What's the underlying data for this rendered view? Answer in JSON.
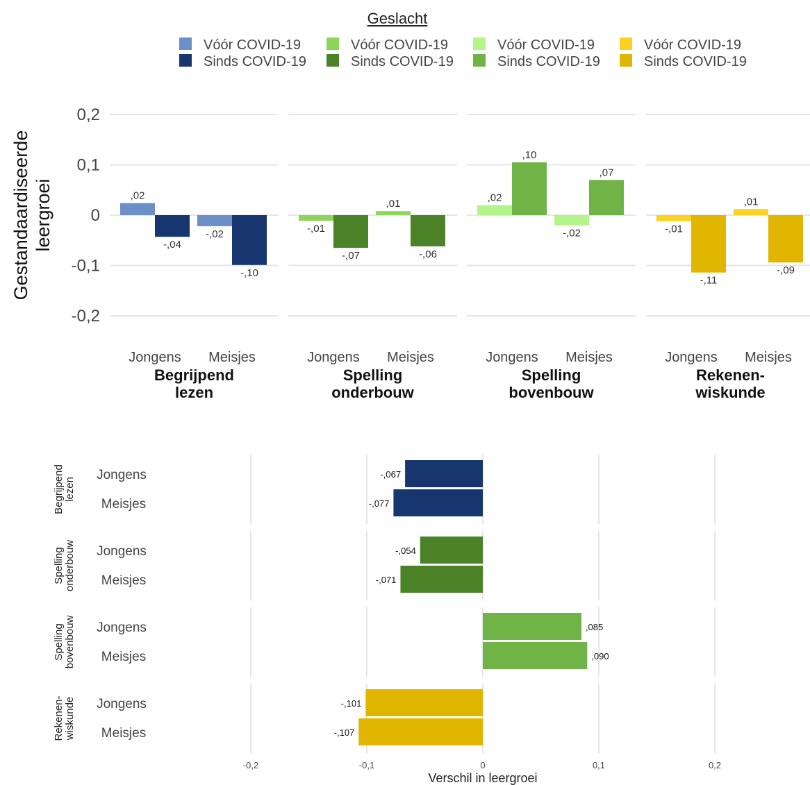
{
  "legend": {
    "title": "Geslacht",
    "groups": [
      {
        "before_label": "Vóór COVID-19",
        "since_label": "Sinds COVID-19",
        "before_color": "#6d8fc8",
        "since_color": "#17366f"
      },
      {
        "before_label": "Vóór COVID-19",
        "since_label": "Sinds COVID-19",
        "before_color": "#8dd45a",
        "since_color": "#4b8227"
      },
      {
        "before_label": "Vóór COVID-19",
        "since_label": "Sinds COVID-19",
        "before_color": "#b3f58a",
        "since_color": "#70b347"
      },
      {
        "before_label": "Vóór COVID-19",
        "since_label": "Sinds COVID-19",
        "before_color": "#fcd11f",
        "since_color": "#e0b600"
      }
    ]
  },
  "chart_data": [
    {
      "type": "bar",
      "ylabel": "Gestandaardiseerde leergroei",
      "ylim": [
        -0.2,
        0.2
      ],
      "yticks": [
        {
          "value": 0.2,
          "label": "0,2"
        },
        {
          "value": 0.1,
          "label": "0,1"
        },
        {
          "value": 0,
          "label": "0"
        },
        {
          "value": -0.1,
          "label": "-0,1"
        },
        {
          "value": -0.2,
          "label": "-0,2"
        }
      ],
      "grid": true,
      "categories": [
        "Jongens",
        "Meisjes"
      ],
      "facets": [
        {
          "name_lines": [
            "Begrijpend",
            "lezen"
          ],
          "before_color": "#6d8fc8",
          "since_color": "#17366f",
          "bars": [
            {
              "before": 0.024,
              "before_label": ",02",
              "since": -0.043,
              "since_label": "-,04"
            },
            {
              "before": -0.022,
              "before_label": "-,02",
              "since": -0.099,
              "since_label": "-,10"
            }
          ]
        },
        {
          "name_lines": [
            "Spelling",
            "onderbouw"
          ],
          "before_color": "#8dd45a",
          "since_color": "#4b8227",
          "bars": [
            {
              "before": -0.011,
              "before_label": "-,01",
              "since": -0.065,
              "since_label": "-,07"
            },
            {
              "before": 0.008,
              "before_label": ",01",
              "since": -0.062,
              "since_label": "-,06"
            }
          ]
        },
        {
          "name_lines": [
            "Spelling",
            "bovenbouw"
          ],
          "before_color": "#b3f58a",
          "since_color": "#70b347",
          "bars": [
            {
              "before": 0.02,
              "before_label": ",02",
              "since": 0.105,
              "since_label": ",10"
            },
            {
              "before": -0.02,
              "before_label": "-,02",
              "since": 0.07,
              "since_label": ",07"
            }
          ]
        },
        {
          "name_lines": [
            "Rekenen-",
            "wiskunde"
          ],
          "before_color": "#fcd11f",
          "since_color": "#e0b600",
          "bars": [
            {
              "before": -0.012,
              "before_label": "-,01",
              "since": -0.114,
              "since_label": "-,11"
            },
            {
              "before": 0.012,
              "before_label": ",01",
              "since": -0.094,
              "since_label": "-,09"
            }
          ]
        }
      ]
    },
    {
      "type": "bar",
      "orientation": "horizontal",
      "xlabel": "Verschil in leergroei",
      "xlim": [
        -0.2,
        0.2
      ],
      "xticks": [
        {
          "value": -0.2,
          "label": "-0,2"
        },
        {
          "value": -0.1,
          "label": "-0,1"
        },
        {
          "value": 0,
          "label": "0"
        },
        {
          "value": 0.1,
          "label": "0,1"
        },
        {
          "value": 0.2,
          "label": "0,2"
        }
      ],
      "grid": true,
      "facets": [
        {
          "name_lines": [
            "Begrijpend",
            "lezen"
          ],
          "color": "#17366f",
          "rows": [
            {
              "label": "Jongens",
              "value": -0.067,
              "value_label": "-,067"
            },
            {
              "label": "Meisjes",
              "value": -0.077,
              "value_label": "-,077"
            }
          ]
        },
        {
          "name_lines": [
            "Spelling",
            "onderbouw"
          ],
          "color": "#4b8227",
          "rows": [
            {
              "label": "Jongens",
              "value": -0.054,
              "value_label": "-,054"
            },
            {
              "label": "Meisjes",
              "value": -0.071,
              "value_label": "-,071"
            }
          ]
        },
        {
          "name_lines": [
            "Spelling",
            "bovenbouw"
          ],
          "color": "#70b347",
          "rows": [
            {
              "label": "Jongens",
              "value": 0.085,
              "value_label": ",085"
            },
            {
              "label": "Meisjes",
              "value": 0.09,
              "value_label": ",090"
            }
          ]
        },
        {
          "name_lines": [
            "Rekenen-",
            "wiskunde"
          ],
          "color": "#e0b600",
          "rows": [
            {
              "label": "Jongens",
              "value": -0.101,
              "value_label": "-,101"
            },
            {
              "label": "Meisjes",
              "value": -0.107,
              "value_label": "-,107"
            }
          ]
        }
      ]
    }
  ]
}
